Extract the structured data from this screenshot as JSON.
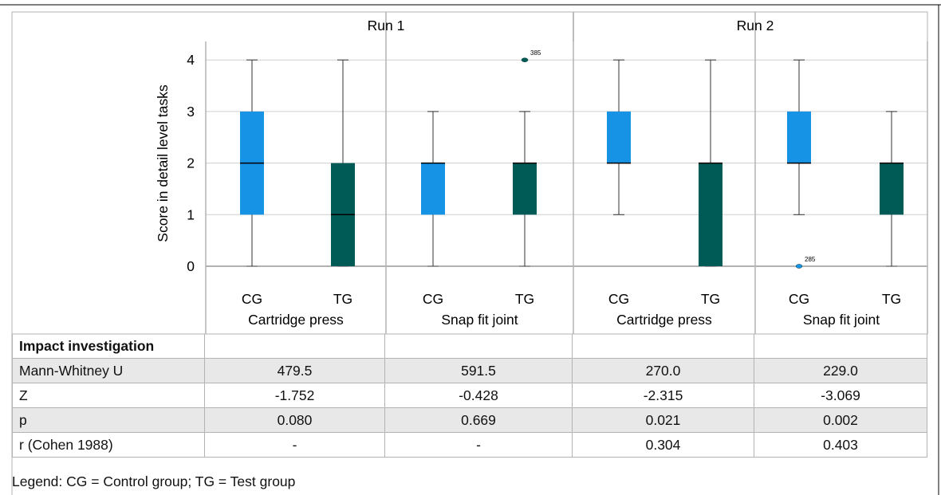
{
  "chart_data": {
    "type": "boxplot",
    "ylabel": "Score in detail level tasks",
    "ylim": [
      0,
      4
    ],
    "yticks": [
      "0",
      "1",
      "2",
      "3",
      "4"
    ],
    "runs": [
      "Run 1",
      "Run 2"
    ],
    "panels": [
      {
        "run": "Run 1",
        "task": "Cartridge press",
        "groups": [
          {
            "name": "CG",
            "min": 0,
            "q1": 1,
            "median": 2,
            "q3": 3,
            "max": 4,
            "outliers": []
          },
          {
            "name": "TG",
            "min": 0,
            "q1": 0,
            "median": 1,
            "q3": 2,
            "max": 4,
            "outliers": []
          }
        ]
      },
      {
        "run": "Run 1",
        "task": "Snap fit joint",
        "groups": [
          {
            "name": "CG",
            "min": 0,
            "q1": 1,
            "median": 2,
            "q3": 2,
            "max": 3,
            "outliers": []
          },
          {
            "name": "TG",
            "min": 0,
            "q1": 1,
            "median": 2,
            "q3": 2,
            "max": 3,
            "outliers": [
              {
                "value": 4,
                "label": "385"
              }
            ]
          }
        ]
      },
      {
        "run": "Run 2",
        "task": "Cartridge press",
        "groups": [
          {
            "name": "CG",
            "min": 1,
            "q1": 2,
            "median": 2,
            "q3": 3,
            "max": 4,
            "outliers": []
          },
          {
            "name": "TG",
            "min": 0,
            "q1": 0,
            "median": 2,
            "q3": 2,
            "max": 4,
            "outliers": []
          }
        ]
      },
      {
        "run": "Run 2",
        "task": "Snap fit joint",
        "groups": [
          {
            "name": "CG",
            "min": 1,
            "q1": 2,
            "median": 2,
            "q3": 3,
            "max": 4,
            "outliers": [
              {
                "value": 0,
                "label": "285"
              }
            ]
          },
          {
            "name": "TG",
            "min": 0,
            "q1": 1,
            "median": 2,
            "q3": 2,
            "max": 3,
            "outliers": []
          }
        ]
      }
    ],
    "colors": {
      "CG": "#1793e6",
      "TG": "#005a55"
    },
    "grid": true
  },
  "table": {
    "header": "Impact investigation",
    "rows": [
      {
        "label": "Mann-Whitney  U",
        "values": [
          "479.5",
          "591.5",
          "270.0",
          "229.0"
        ],
        "shaded": true
      },
      {
        "label": "Z",
        "values": [
          "-1.752",
          "-0.428",
          "-2.315",
          "-3.069"
        ],
        "shaded": false
      },
      {
        "label": "p",
        "values": [
          "0.080",
          "0.669",
          "0.021",
          "0.002"
        ],
        "shaded": true
      },
      {
        "label": "r (Cohen 1988)",
        "values": [
          "-",
          "-",
          "0.304",
          "0.403"
        ],
        "shaded": false
      }
    ]
  },
  "legend": "Legend: CG = Control group; TG = Test group"
}
